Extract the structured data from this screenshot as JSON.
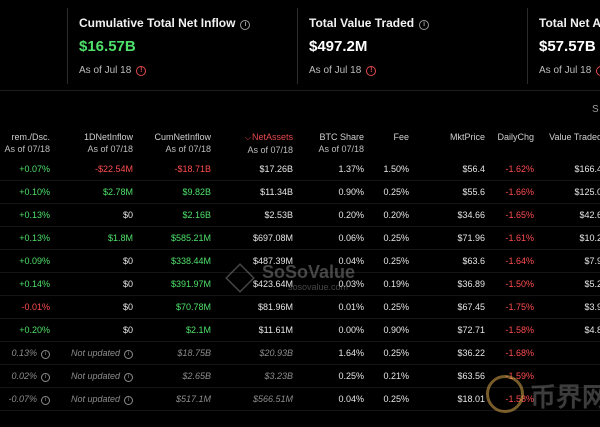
{
  "cards": [
    {
      "title": "Cumulative Total Net Inflow",
      "value": "$16.57B",
      "date": "As of Jul 18"
    },
    {
      "title": "Total Value Traded",
      "value": "$497.2M",
      "date": "As of Jul 18"
    },
    {
      "title": "Total Net Ass",
      "value": "$57.57B",
      "date": "As of Jul 18"
    }
  ],
  "page_partial": "S",
  "table": {
    "headers": [
      {
        "main": "rem./Dsc.",
        "sub": "As of 07/18"
      },
      {
        "main": "1DNetInflow",
        "sub": "As of 07/18"
      },
      {
        "main": "CumNetInflow",
        "sub": "As of 07/18"
      },
      {
        "main": "NetAssets",
        "sub": "As of 07/18"
      },
      {
        "main": "BTC Share",
        "sub": "As of 07/18"
      },
      {
        "main": "Fee",
        "sub": ""
      },
      {
        "main": "MktPrice",
        "sub": ""
      },
      {
        "main": "DailyChg",
        "sub": ""
      },
      {
        "main": "Value Traded",
        "sub": ""
      }
    ],
    "rows": [
      [
        "+0.07%",
        "-$22.54M",
        "-$18.71B",
        "$17.26B",
        "1.37%",
        "1.50%",
        "$56.4",
        "-1.62%",
        "$166.4"
      ],
      [
        "+0.10%",
        "$2.78M",
        "$9.82B",
        "$11.34B",
        "0.90%",
        "0.25%",
        "$55.6",
        "-1.66%",
        "$125.0"
      ],
      [
        "+0.13%",
        "$0",
        "$2.16B",
        "$2.53B",
        "0.20%",
        "0.20%",
        "$34.66",
        "-1.65%",
        "$42.6"
      ],
      [
        "+0.13%",
        "$1.8M",
        "$585.21M",
        "$697.08M",
        "0.06%",
        "0.25%",
        "$71.96",
        "-1.61%",
        "$10.2"
      ],
      [
        "+0.09%",
        "$0",
        "$338.44M",
        "$487.39M",
        "0.04%",
        "0.25%",
        "$63.6",
        "-1.64%",
        "$7.9"
      ],
      [
        "+0.14%",
        "$0",
        "$391.97M",
        "$423.64M",
        "0.03%",
        "0.19%",
        "$36.89",
        "-1.50%",
        "$5.2"
      ],
      [
        "-0.01%",
        "$0",
        "$70.78M",
        "$81.96M",
        "0.01%",
        "0.25%",
        "$67.45",
        "-1.75%",
        "$3.9"
      ],
      [
        "+0.20%",
        "$0",
        "$2.1M",
        "$11.61M",
        "0.00%",
        "0.90%",
        "$72.71",
        "-1.58%",
        "$4.8"
      ],
      [
        "0.13%",
        "Not updated",
        "$18.75B",
        "$20.93B",
        "1.64%",
        "0.25%",
        "$36.22",
        "-1.68%",
        ""
      ],
      [
        "0.02%",
        "Not updated",
        "$2.65B",
        "$3.23B",
        "0.25%",
        "0.21%",
        "$63.56",
        "-1.59%",
        ""
      ],
      [
        "-0.07%",
        "Not updated",
        "$517.1M",
        "$566.51M",
        "0.04%",
        "0.25%",
        "$18.01",
        "-1.58%",
        ""
      ]
    ]
  },
  "watermark": {
    "brand": "SoSoValue",
    "domain": "sosovalue.com",
    "site": "币界网"
  },
  "colors": {
    "positive": "#4ee06a",
    "negative": "#ff4d4f",
    "muted": "#8c8c8c",
    "background": "#000000",
    "accent": "#e5484d"
  }
}
